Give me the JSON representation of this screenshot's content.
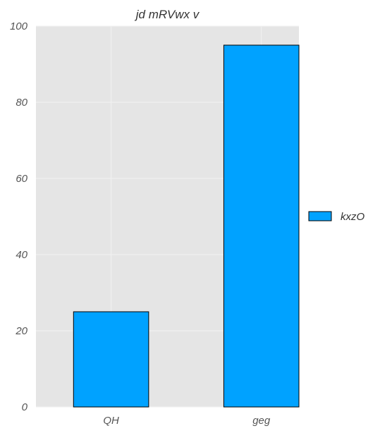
{
  "chart_data": {
    "type": "bar",
    "title": "jd mRVwx v",
    "xlabel": "",
    "ylabel": "",
    "categories": [
      "QH",
      "geg"
    ],
    "series": [
      {
        "name": "kxzO",
        "values": [
          25,
          95
        ],
        "color": "#00a2ff"
      }
    ],
    "ylim": [
      0,
      100
    ],
    "yticks": [
      0,
      20,
      40,
      60,
      80,
      100
    ],
    "grid": true,
    "legend_position": "right",
    "background_color": "#e5e5e5",
    "grid_color": "#f2f2f2",
    "text_color": "#555555",
    "bar_edge_color": "#000000"
  }
}
